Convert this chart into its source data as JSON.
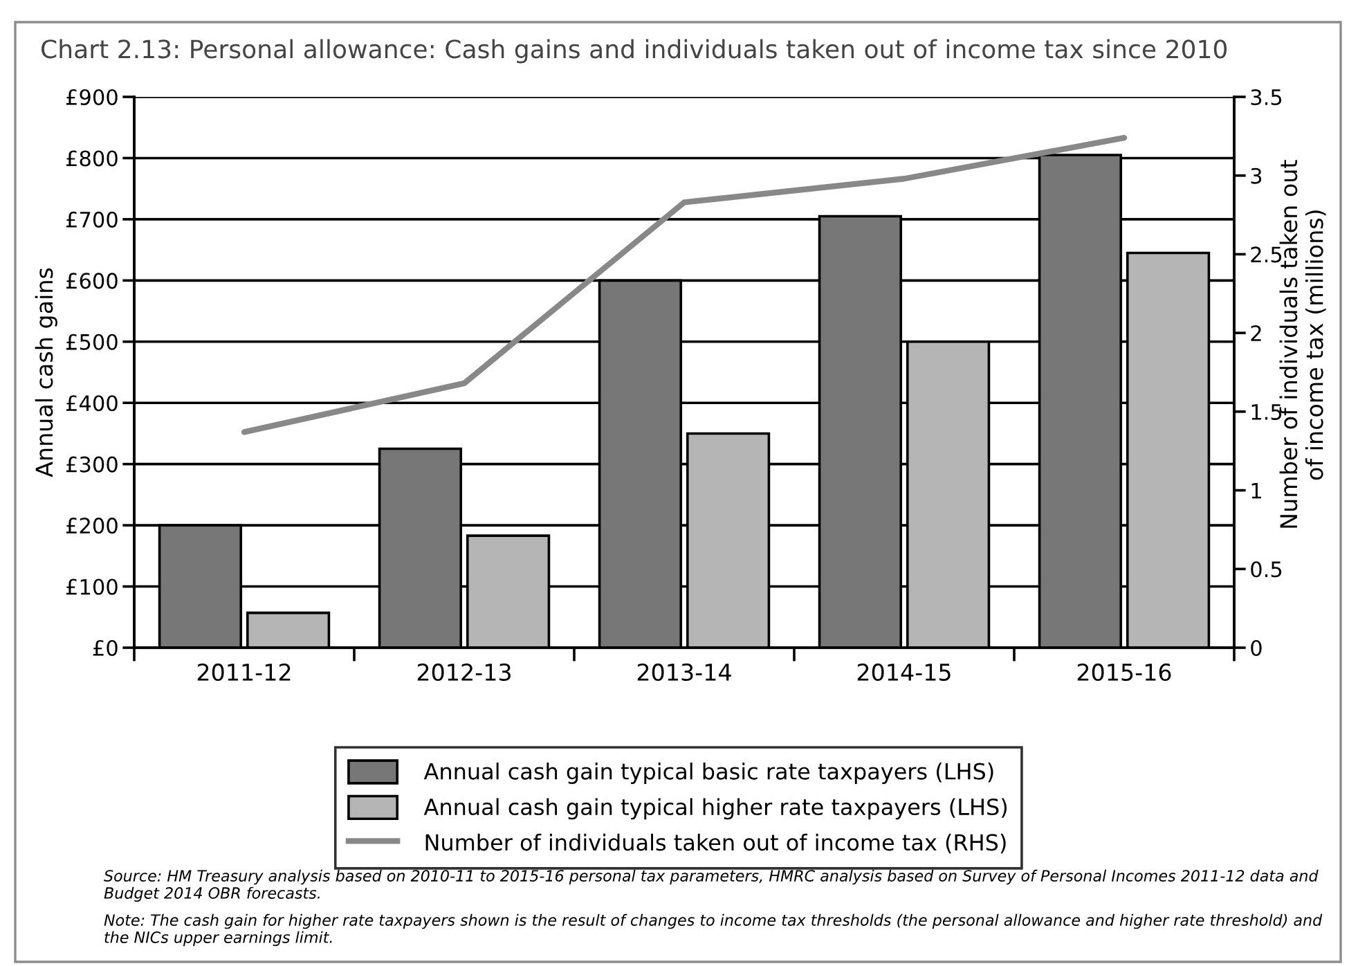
{
  "chart_data": {
    "type": "bar",
    "title": "Chart 2.13: Personal allowance: Cash gains and individuals taken out of income tax since 2010",
    "ylabel": "Annual cash gains",
    "y2label": "Number of individuals taken out\nof income tax (millions)",
    "categories": [
      "2011-12",
      "2012-13",
      "2013-14",
      "2014-15",
      "2015-16"
    ],
    "series": [
      {
        "name": "Annual cash gain typical basic rate taxpayers (LHS)",
        "color": "#777777",
        "values": [
          200,
          325,
          600,
          705,
          805
        ]
      },
      {
        "name": "Annual cash gain typical higher rate taxpayers (LHS)",
        "color": "#b5b5b5",
        "values": [
          57,
          183,
          350,
          500,
          645
        ]
      },
      {
        "name": "Number of individuals taken out of income tax (RHS)",
        "type": "line",
        "axis": "y2",
        "color": "#888888",
        "values": [
          1.37,
          1.68,
          2.83,
          2.98,
          3.24
        ]
      }
    ],
    "ylim": [
      0,
      900
    ],
    "yticks": [
      {
        "value": 0,
        "label": "£0"
      },
      {
        "value": 100,
        "label": "£100"
      },
      {
        "value": 200,
        "label": "£200"
      },
      {
        "value": 300,
        "label": "£300"
      },
      {
        "value": 400,
        "label": "£400"
      },
      {
        "value": 500,
        "label": "£500"
      },
      {
        "value": 600,
        "label": "£600"
      },
      {
        "value": 700,
        "label": "£700"
      },
      {
        "value": 800,
        "label": "£800"
      },
      {
        "value": 900,
        "label": "£900"
      }
    ],
    "y2lim": [
      0,
      3.5
    ],
    "y2ticks": [
      0,
      0.5,
      1,
      1.5,
      2,
      2.5,
      3,
      3.5
    ],
    "grid": "y",
    "legend": "bottom",
    "annotations": [
      "Source: HM Treasury analysis based on 2010-11 to 2015-16 personal tax parameters, HMRC analysis based on Survey of Personal Incomes 2011-12 data and Budget 2014 OBR forecasts.",
      "Note: The cash gain for higher rate taxpayers shown is the result of changes to income tax thresholds (the personal allowance and higher rate threshold) and the NICs upper earnings limit."
    ]
  }
}
